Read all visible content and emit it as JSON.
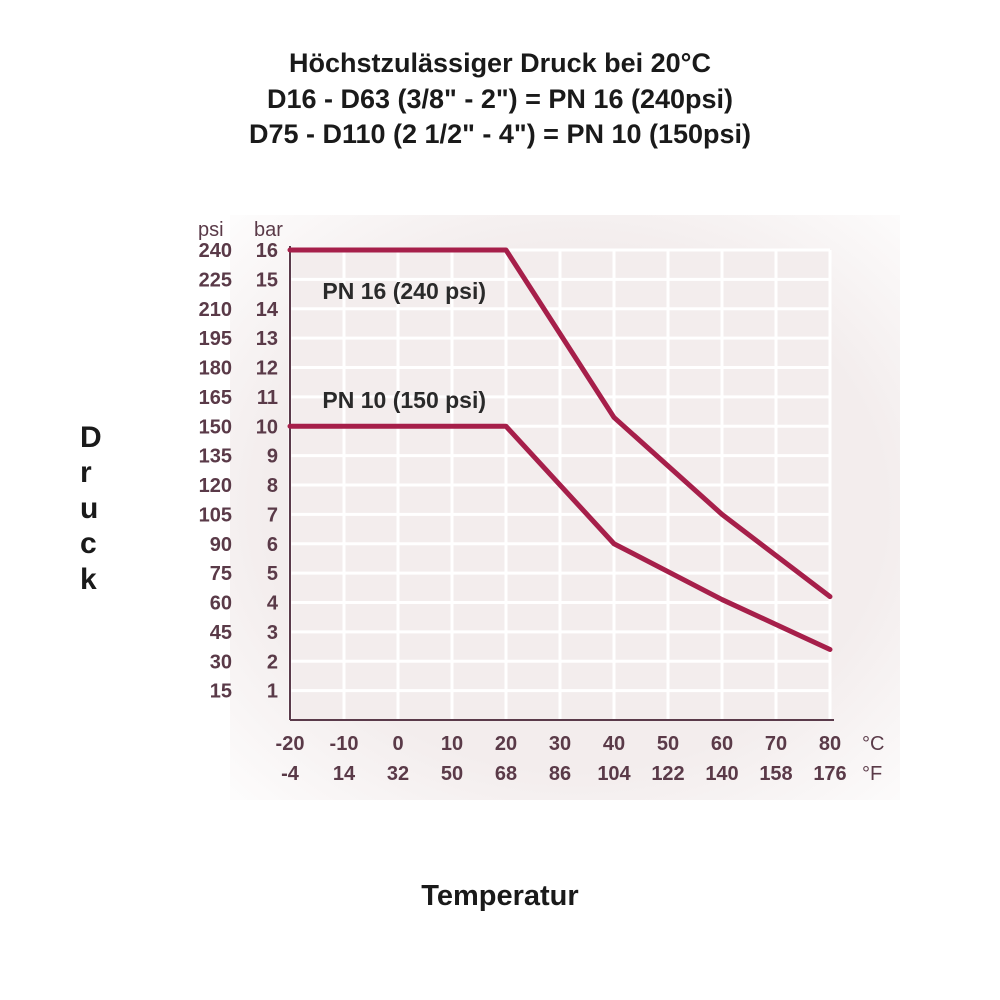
{
  "title": {
    "line1": "Höchstzulässiger Druck bei 20°C",
    "line2": "D16 - D63 (3/8\" - 2\") = PN 16 (240psi)",
    "line3": "D75 - D110 (2 1/2\" - 4\") = PN 10 (150psi)",
    "fontsize": 27,
    "weight": "bold",
    "color": "#1a1a1a"
  },
  "y_axis": {
    "label_text": "Druck",
    "label_fontsize": 30,
    "header_left": "psi",
    "header_right": "bar",
    "ticks": [
      {
        "psi": "240",
        "bar": "16"
      },
      {
        "psi": "225",
        "bar": "15"
      },
      {
        "psi": "210",
        "bar": "14"
      },
      {
        "psi": "195",
        "bar": "13"
      },
      {
        "psi": "180",
        "bar": "12"
      },
      {
        "psi": "165",
        "bar": "11"
      },
      {
        "psi": "150",
        "bar": "10"
      },
      {
        "psi": "135",
        "bar": "9"
      },
      {
        "psi": "120",
        "bar": "8"
      },
      {
        "psi": "105",
        "bar": "7"
      },
      {
        "psi": "90",
        "bar": "6"
      },
      {
        "psi": "75",
        "bar": "5"
      },
      {
        "psi": "60",
        "bar": "4"
      },
      {
        "psi": "45",
        "bar": "3"
      },
      {
        "psi": "30",
        "bar": "2"
      },
      {
        "psi": "15",
        "bar": "1"
      }
    ],
    "tick_color": "#5a3a48",
    "tick_fontsize": 20,
    "ylim_bar": [
      0,
      16
    ]
  },
  "x_axis": {
    "label_text": "Temperatur",
    "label_fontsize": 29,
    "celsius": [
      "-20",
      "-10",
      "0",
      "10",
      "20",
      "30",
      "40",
      "50",
      "60",
      "70",
      "80"
    ],
    "fahrenheit": [
      "-4",
      "14",
      "32",
      "50",
      "68",
      "86",
      "104",
      "122",
      "140",
      "158",
      "176"
    ],
    "unit_c": "°C",
    "unit_f": "°F",
    "tick_color": "#5a3a48",
    "tick_fontsize": 20,
    "xlim_c": [
      -20,
      80
    ]
  },
  "plot": {
    "type": "line",
    "background_color": "#f3eded",
    "grid_color": "#ffffff",
    "grid_line_width": 3,
    "axis_line_color": "#5a3a4a",
    "fade_edges": true,
    "series": [
      {
        "name": "PN16",
        "label": "PN 16 (240 psi)",
        "label_pos_c": -14,
        "label_pos_bar": 14.6,
        "color": "#a61f4a",
        "line_width": 5,
        "points_c_bar": [
          [
            -20,
            16
          ],
          [
            20,
            16
          ],
          [
            40,
            10.3
          ],
          [
            60,
            7
          ],
          [
            80,
            4.2
          ]
        ]
      },
      {
        "name": "PN10",
        "label": "PN 10 (150 psi)",
        "label_pos_c": -14,
        "label_pos_bar": 10.9,
        "color": "#a61f4a",
        "line_width": 5,
        "points_c_bar": [
          [
            -20,
            10
          ],
          [
            20,
            10
          ],
          [
            40,
            6
          ],
          [
            60,
            4.1
          ],
          [
            80,
            2.4
          ]
        ]
      }
    ]
  }
}
